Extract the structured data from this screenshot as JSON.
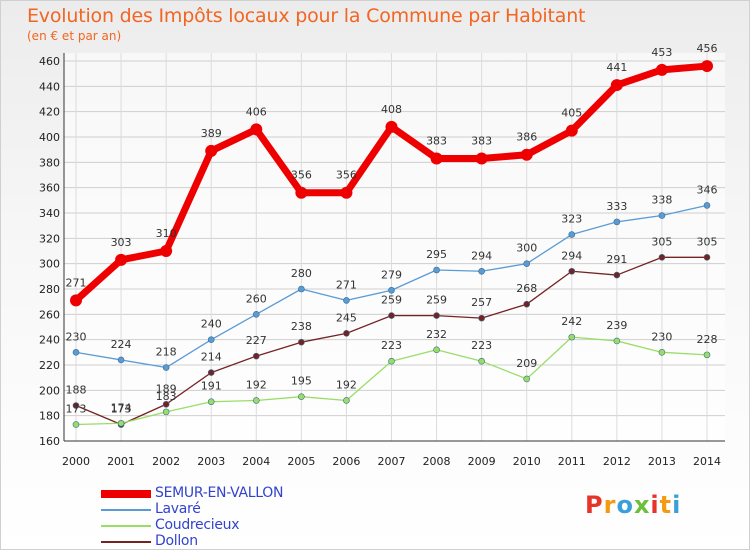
{
  "header": {
    "title": "Evolution des Impôts locaux pour la Commune par Habitant",
    "subtitle": "(en € et par an)"
  },
  "chart_data": {
    "type": "line",
    "title": "Evolution des Impôts locaux pour la Commune par Habitant",
    "subtitle": "(en € et par an)",
    "x": [
      2000,
      2001,
      2002,
      2003,
      2004,
      2005,
      2006,
      2007,
      2008,
      2009,
      2010,
      2011,
      2012,
      2013,
      2014
    ],
    "ylim": [
      160,
      460
    ],
    "yticks": [
      160,
      180,
      200,
      220,
      240,
      260,
      280,
      300,
      320,
      340,
      360,
      380,
      400,
      420,
      440,
      460
    ],
    "grid": true,
    "legend_position": "bottom-left",
    "series": [
      {
        "name": "SEMUR-EN-VALLON",
        "color": "#ee0000",
        "values": [
          271,
          303,
          310,
          389,
          406,
          356,
          356,
          408,
          383,
          383,
          386,
          405,
          441,
          453,
          456
        ]
      },
      {
        "name": "Lavaré",
        "color": "#5b9bd5",
        "values": [
          230,
          224,
          218,
          240,
          260,
          280,
          271,
          279,
          295,
          294,
          300,
          323,
          333,
          338,
          346
        ]
      },
      {
        "name": "Coudrecieux",
        "color": "#99dd66",
        "values": [
          173,
          174,
          183,
          191,
          192,
          195,
          192,
          223,
          232,
          223,
          209,
          242,
          239,
          230,
          228
        ]
      },
      {
        "name": "Dollon",
        "color": "#772222",
        "values": [
          188,
          173,
          189,
          214,
          227,
          238,
          245,
          259,
          259,
          257,
          268,
          294,
          291,
          305,
          305
        ]
      }
    ]
  },
  "logo": {
    "text": "Proxiti",
    "colors": [
      "#e8332a",
      "#f39c12",
      "#3aa0dc",
      "#6cbf3b",
      "#e8332a",
      "#f39c12",
      "#3aa0dc"
    ]
  }
}
